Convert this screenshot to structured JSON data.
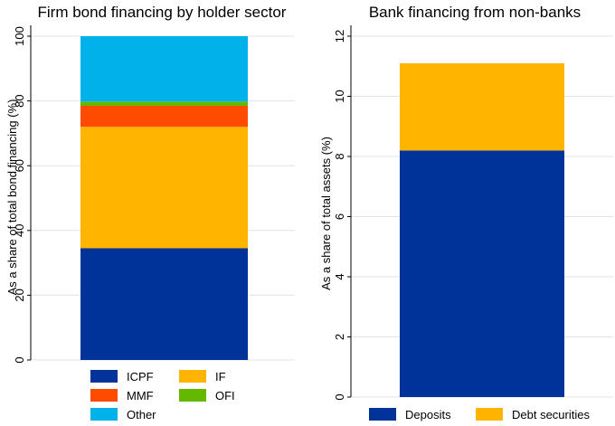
{
  "chart_data": [
    {
      "type": "bar",
      "stacked": true,
      "title": "Firm bond financing by holder sector",
      "ylabel": "As a share of total bond financing (%)",
      "xlabel": "",
      "ylim": [
        0,
        100
      ],
      "yticks": [
        "0",
        "20",
        "40",
        "60",
        "80",
        "100"
      ],
      "grid": true,
      "legend_position": "bottom",
      "categories": [
        ""
      ],
      "series": [
        {
          "name": "ICPF",
          "values": [
            34.5
          ],
          "color": "#003399"
        },
        {
          "name": "IF",
          "values": [
            37.5
          ],
          "color": "#FFB400"
        },
        {
          "name": "MMF",
          "values": [
            6.5
          ],
          "color": "#FF4B00"
        },
        {
          "name": "OFI",
          "values": [
            1.3
          ],
          "color": "#65B800"
        },
        {
          "name": "Other",
          "values": [
            20.2
          ],
          "color": "#00B1EA"
        }
      ]
    },
    {
      "type": "bar",
      "stacked": true,
      "title": "Bank financing from non-banks",
      "ylabel": "As a share of total assets (%)",
      "xlabel": "",
      "ylim": [
        0,
        12
      ],
      "yticks": [
        "0",
        "2",
        "4",
        "6",
        "8",
        "10",
        "12"
      ],
      "grid": true,
      "legend_position": "bottom",
      "categories": [
        ""
      ],
      "series": [
        {
          "name": "Deposits",
          "values": [
            8.2
          ],
          "color": "#003399"
        },
        {
          "name": "Debt securities",
          "values": [
            2.9
          ],
          "color": "#FFB400"
        }
      ]
    }
  ]
}
